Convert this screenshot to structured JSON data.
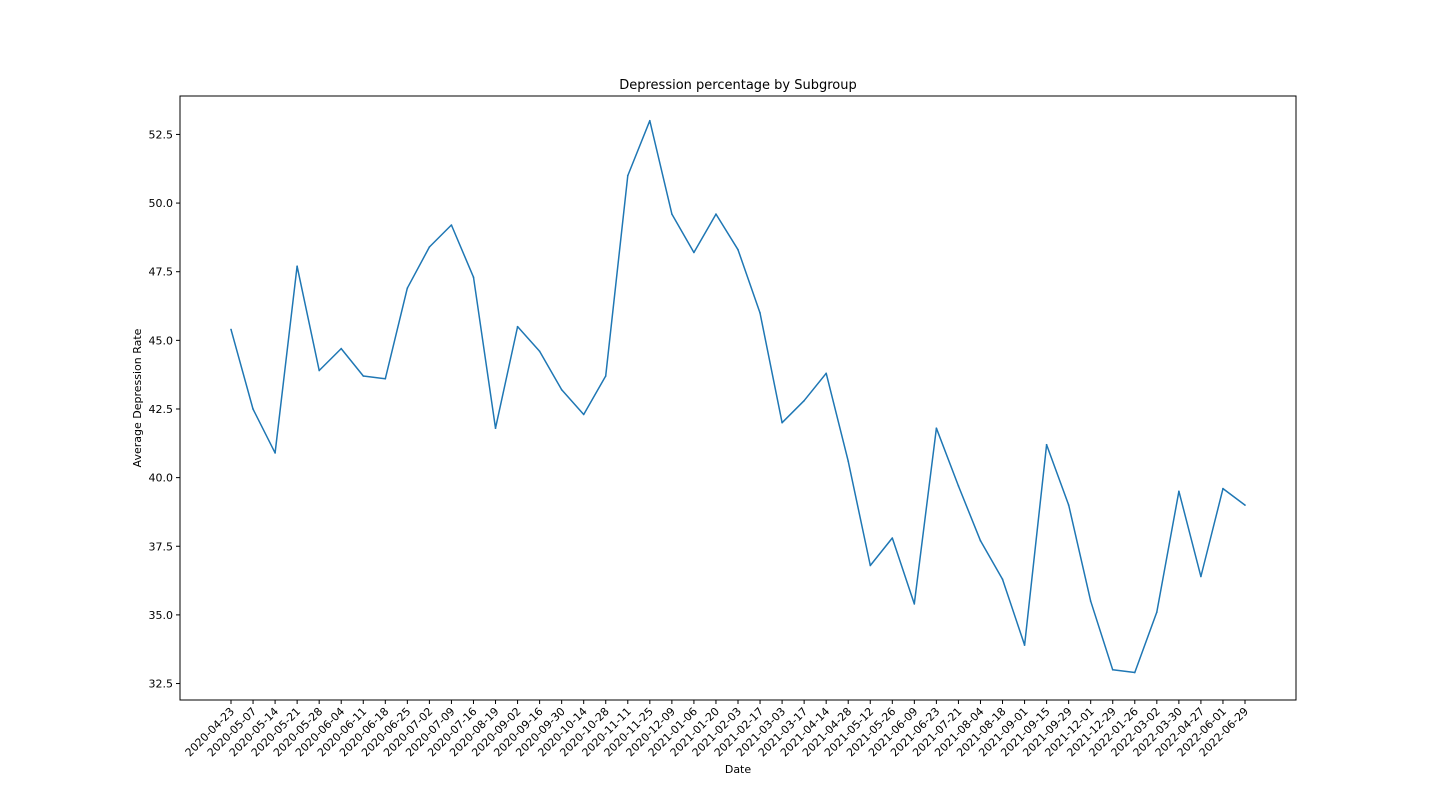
{
  "chart_data": {
    "type": "line",
    "title": "Depression percentage by Subgroup",
    "xlabel": "Date",
    "ylabel": "Average Depression Rate",
    "ylim": [
      31.9,
      53.9
    ],
    "yticks": [
      32.5,
      35.0,
      37.5,
      40.0,
      42.5,
      45.0,
      47.5,
      50.0,
      52.5
    ],
    "grid": false,
    "legend": "none",
    "colors": {
      "line": "#1f77b4",
      "axes": "#000000"
    },
    "x": [
      "2020-04-23",
      "2020-05-07",
      "2020-05-14",
      "2020-05-21",
      "2020-05-28",
      "2020-06-04",
      "2020-06-11",
      "2020-06-18",
      "2020-06-25",
      "2020-07-02",
      "2020-07-09",
      "2020-07-16",
      "2020-08-19",
      "2020-09-02",
      "2020-09-16",
      "2020-09-30",
      "2020-10-14",
      "2020-10-28",
      "2020-11-11",
      "2020-11-25",
      "2020-12-09",
      "2021-01-06",
      "2021-01-20",
      "2021-02-03",
      "2021-02-17",
      "2021-03-03",
      "2021-03-17",
      "2021-04-14",
      "2021-04-28",
      "2021-05-12",
      "2021-05-26",
      "2021-06-09",
      "2021-06-23",
      "2021-07-21",
      "2021-08-04",
      "2021-08-18",
      "2021-09-01",
      "2021-09-15",
      "2021-09-29",
      "2021-12-01",
      "2021-12-29",
      "2022-01-26",
      "2022-03-02",
      "2022-03-30",
      "2022-04-27",
      "2022-06-01",
      "2022-06-29"
    ],
    "series": [
      {
        "values": [
          45.4,
          42.5,
          40.9,
          47.7,
          43.9,
          44.7,
          43.7,
          43.6,
          46.9,
          48.4,
          49.2,
          47.3,
          41.8,
          45.5,
          44.6,
          43.2,
          42.3,
          43.7,
          51.0,
          53.0,
          49.6,
          48.2,
          49.6,
          48.3,
          46.0,
          42.0,
          42.8,
          43.8,
          40.6,
          36.8,
          37.8,
          35.4,
          41.8,
          39.7,
          37.7,
          36.3,
          33.9,
          41.2,
          39.0,
          35.5,
          33.0,
          32.9,
          35.1,
          39.5,
          36.4,
          39.6,
          39.0
        ]
      }
    ]
  }
}
